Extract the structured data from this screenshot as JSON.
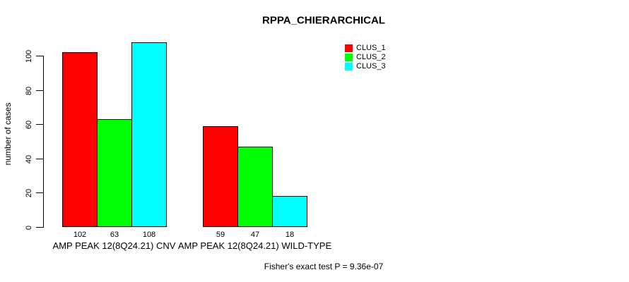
{
  "chart": {
    "title": "RPPA_CHIERARCHICAL",
    "ylabel": "number of cases",
    "footnote": "Fisher's exact test P = 9.36e-07"
  },
  "legend": {
    "items": [
      {
        "label": "CLUS_1",
        "color": "#FF0000"
      },
      {
        "label": "CLUS_2",
        "color": "#00FF00"
      },
      {
        "label": "CLUS_3",
        "color": "#00FFFF"
      }
    ]
  },
  "chart_data": {
    "type": "bar",
    "title": "RPPA_CHIERARCHICAL",
    "xlabel": "",
    "ylabel": "number of cases",
    "categories": [
      "AMP PEAK 12(8Q24.21) CNV",
      "AMP PEAK 12(8Q24.21) WILD-TYPE"
    ],
    "series": [
      {
        "name": "CLUS_1",
        "color": "#FF0000",
        "values": [
          102,
          59
        ]
      },
      {
        "name": "CLUS_2",
        "color": "#00FF00",
        "values": [
          63,
          47
        ]
      },
      {
        "name": "CLUS_3",
        "color": "#00FFFF",
        "values": [
          108,
          18
        ]
      }
    ],
    "bar_labels": [
      [
        102,
        63,
        108
      ],
      [
        59,
        47,
        18
      ]
    ],
    "yticks": [
      0,
      20,
      40,
      60,
      80,
      100
    ],
    "ylim": [
      0,
      108
    ],
    "grid": false,
    "legend_position": "top-right",
    "annotation": "Fisher's exact test P = 9.36e-07"
  }
}
